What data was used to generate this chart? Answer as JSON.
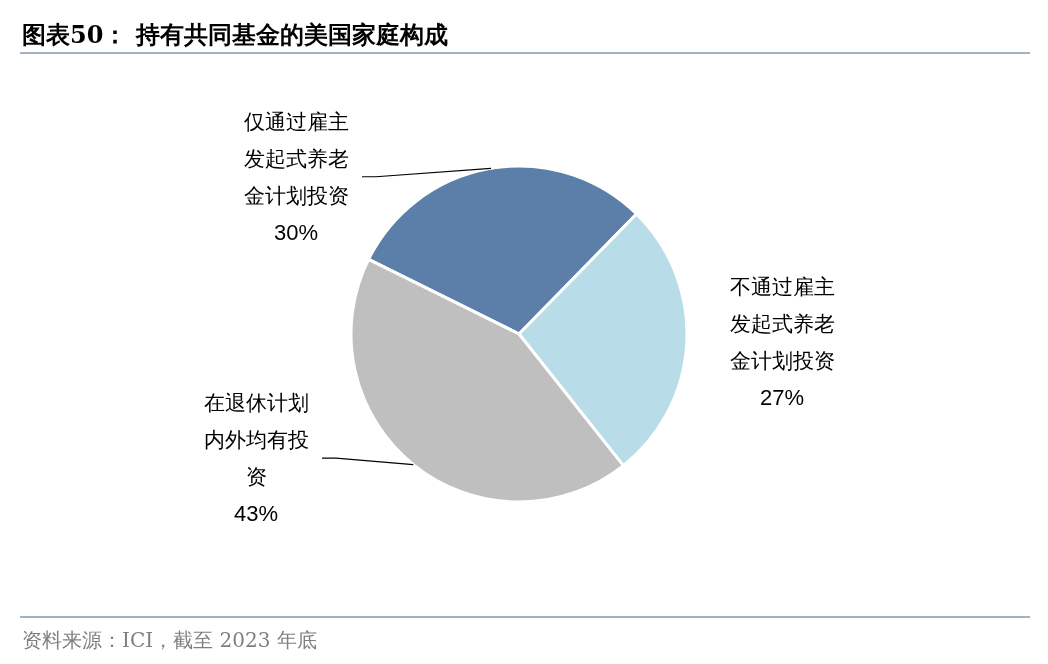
{
  "chart_data": {
    "type": "pie",
    "title": "图表50：  持有共同基金的美国家庭构成",
    "categories": [
      "仅通过雇主发起式养老金计划投资",
      "不通过雇主发起式养老金计划投资",
      "在退休计划内外均有投资"
    ],
    "values": [
      30,
      27,
      43
    ],
    "colors": [
      "#5b7fa8",
      "#b8dde8",
      "#bfbfbf"
    ],
    "value_labels": [
      "30%",
      "27%",
      "43%"
    ],
    "annotations": [
      "资料来源：ICI，截至 2023 年底"
    ]
  }
}
